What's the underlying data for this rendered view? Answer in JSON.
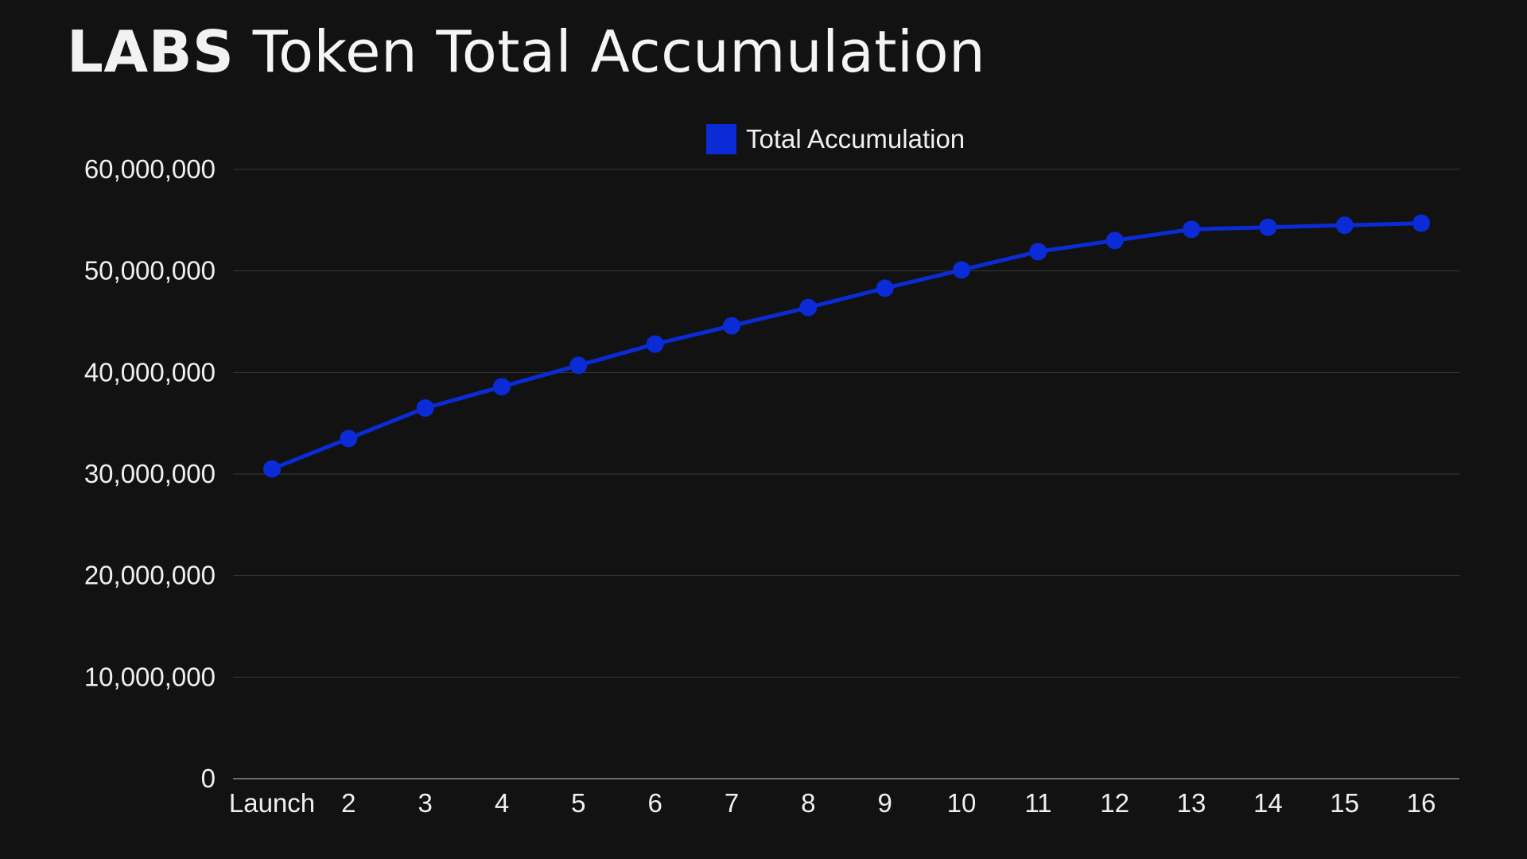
{
  "title": {
    "brand": "LABS",
    "rest": "Token Total Accumulation"
  },
  "colors": {
    "background": "#121212",
    "series": "#0a2bd6",
    "grid": "#3a3a3a",
    "text": "#f0f0f0"
  },
  "chart_data": {
    "type": "line",
    "title": "LABS Token Total Accumulation",
    "xlabel": "",
    "ylabel": "",
    "categories": [
      "Launch",
      "2",
      "3",
      "4",
      "5",
      "6",
      "7",
      "8",
      "9",
      "10",
      "11",
      "12",
      "13",
      "14",
      "15",
      "16"
    ],
    "series": [
      {
        "name": "Total Accumulation",
        "values": [
          30500000,
          33500000,
          36500000,
          38600000,
          40700000,
          42800000,
          44600000,
          46400000,
          48300000,
          50100000,
          51900000,
          53000000,
          54100000,
          54300000,
          54500000,
          54700000
        ]
      }
    ],
    "ylim": [
      0,
      60000000
    ],
    "yticks": [
      0,
      10000000,
      20000000,
      30000000,
      40000000,
      50000000,
      60000000
    ],
    "ytick_labels": [
      "0",
      "10,000,000",
      "20,000,000",
      "30,000,000",
      "40,000,000",
      "50,000,000",
      "60,000,000"
    ],
    "grid": true,
    "legend": "top-center"
  }
}
